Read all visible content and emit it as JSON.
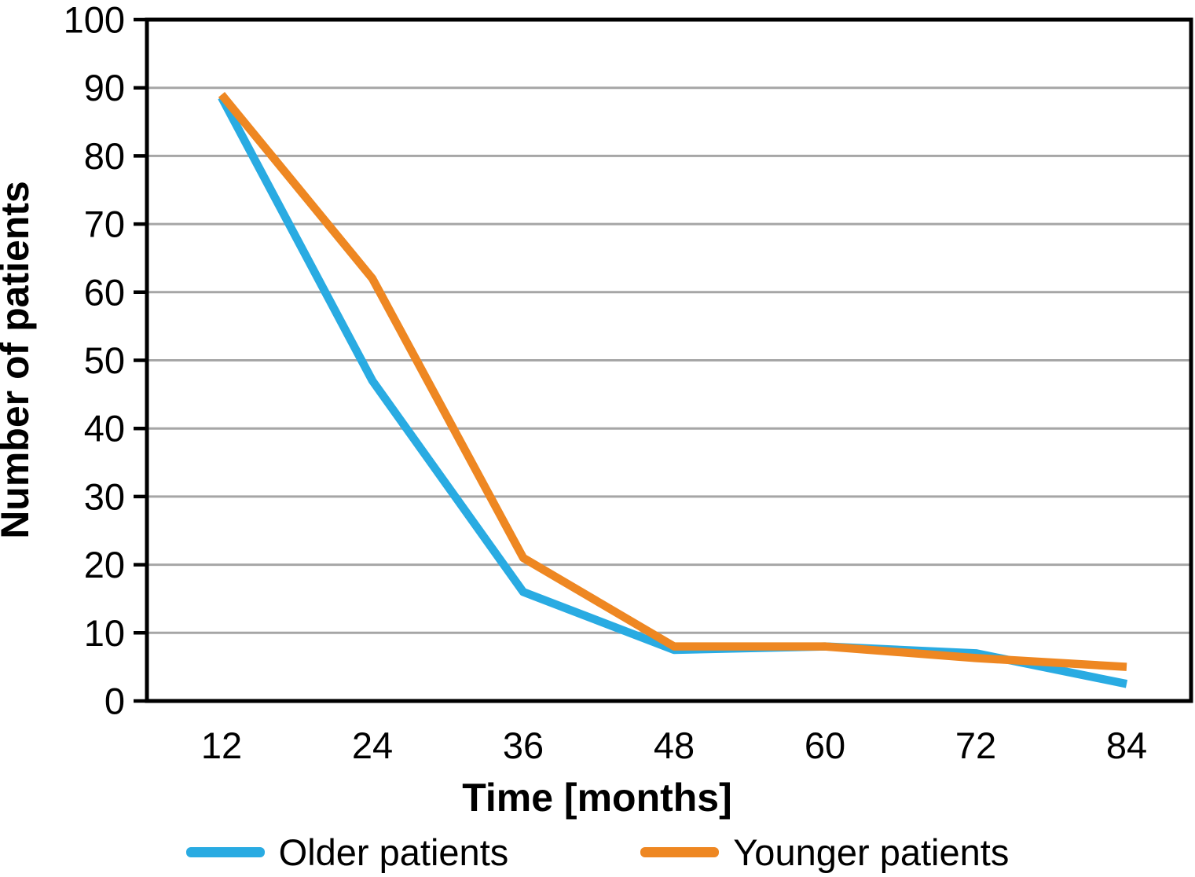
{
  "chart_data": {
    "type": "line",
    "title": "",
    "xlabel": "Time [months]",
    "ylabel": "Number of patients",
    "x_ticks": [
      12,
      24,
      36,
      48,
      60,
      72,
      84
    ],
    "y_ticks": [
      0,
      10,
      20,
      30,
      40,
      50,
      60,
      70,
      80,
      90,
      100
    ],
    "xlim": [
      6,
      89
    ],
    "ylim": [
      0,
      100
    ],
    "grid": "horizontal gray gridlines every 10 units",
    "legend_position": "bottom-center",
    "series": [
      {
        "name": "Older patients",
        "color": "#29ABE2",
        "x": [
          12,
          24,
          36,
          48,
          60,
          72,
          84
        ],
        "values": [
          88.6,
          47,
          16,
          7.5,
          8,
          7,
          2.5
        ]
      },
      {
        "name": "Younger patients",
        "color": "#EE8722",
        "x": [
          12,
          24,
          36,
          48,
          60,
          72,
          84
        ],
        "values": [
          89,
          62,
          21,
          8,
          8,
          6.3,
          5
        ]
      }
    ],
    "colors": {
      "axis": "#000000",
      "grid": "#A6A6A6",
      "text": "#000000",
      "background": "#FFFFFF"
    }
  },
  "legend": {
    "items": [
      {
        "label": "Older patients",
        "color": "#29ABE2"
      },
      {
        "label": "Younger patients",
        "color": "#EE8722"
      }
    ]
  }
}
